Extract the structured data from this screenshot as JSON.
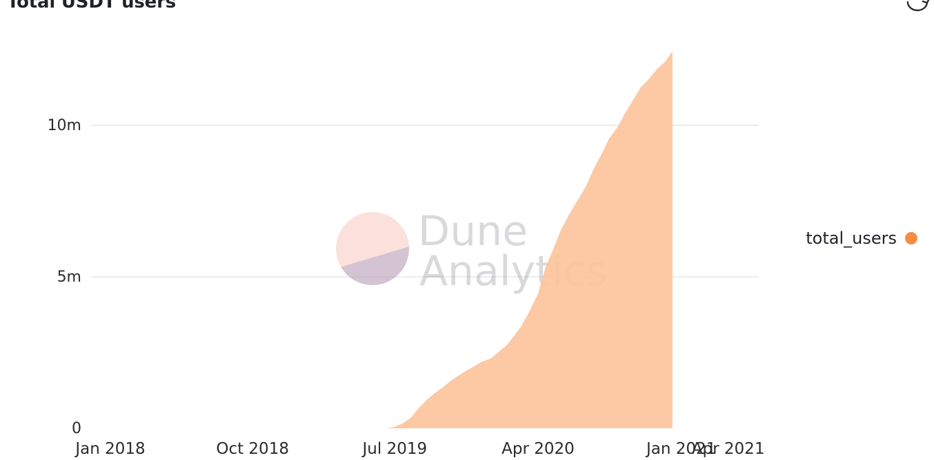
{
  "header": {
    "title": "Total USDT users"
  },
  "icons": {
    "refresh": "refresh-icon"
  },
  "watermark": {
    "line1": "Dune",
    "line2": "Analytics"
  },
  "colors": {
    "series": "#fcc49c",
    "legend_dot": "#f58d46",
    "grid": "#e6e6e6"
  },
  "chart_data": {
    "type": "area",
    "title": "Total USDT users",
    "xlabel": "",
    "ylabel": "",
    "x_ticks": [
      "Jan 2018",
      "Oct 2018",
      "Jul 2019",
      "Apr 2020",
      "Jan 2021",
      "Apr 2021"
    ],
    "y_ticks": [
      "0",
      "5m",
      "10m"
    ],
    "ylim": [
      0,
      12500000
    ],
    "xlim": [
      "2018-01-01",
      "2021-04-01"
    ],
    "grid": true,
    "legend_position": "right",
    "series": [
      {
        "name": "total_users",
        "points": [
          [
            "2019-06-15",
            0
          ],
          [
            "2019-07-01",
            50000
          ],
          [
            "2019-07-15",
            150000
          ],
          [
            "2019-08-01",
            350000
          ],
          [
            "2019-08-15",
            650000
          ],
          [
            "2019-09-01",
            950000
          ],
          [
            "2019-09-15",
            1150000
          ],
          [
            "2019-10-01",
            1350000
          ],
          [
            "2019-10-15",
            1550000
          ],
          [
            "2019-11-01",
            1750000
          ],
          [
            "2019-11-15",
            1900000
          ],
          [
            "2019-12-01",
            2050000
          ],
          [
            "2019-12-15",
            2200000
          ],
          [
            "2020-01-01",
            2300000
          ],
          [
            "2020-01-15",
            2500000
          ],
          [
            "2020-02-01",
            2750000
          ],
          [
            "2020-02-15",
            3050000
          ],
          [
            "2020-03-01",
            3400000
          ],
          [
            "2020-03-15",
            3850000
          ],
          [
            "2020-04-01",
            4450000
          ],
          [
            "2020-04-15",
            5300000
          ],
          [
            "2020-05-01",
            5950000
          ],
          [
            "2020-05-15",
            6550000
          ],
          [
            "2020-06-01",
            7100000
          ],
          [
            "2020-06-15",
            7500000
          ],
          [
            "2020-07-01",
            7950000
          ],
          [
            "2020-07-15",
            8500000
          ],
          [
            "2020-08-01",
            9050000
          ],
          [
            "2020-08-15",
            9550000
          ],
          [
            "2020-09-01",
            9950000
          ],
          [
            "2020-09-15",
            10400000
          ],
          [
            "2020-10-01",
            10850000
          ],
          [
            "2020-10-15",
            11250000
          ],
          [
            "2020-11-01",
            11550000
          ],
          [
            "2020-11-15",
            11850000
          ],
          [
            "2020-12-01",
            12100000
          ],
          [
            "2020-12-15",
            12450000
          ]
        ]
      }
    ]
  },
  "legend": {
    "label": "total_users"
  }
}
